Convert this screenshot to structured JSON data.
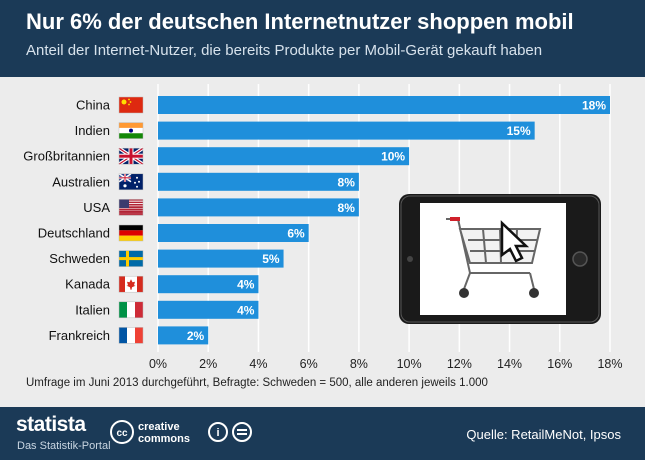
{
  "header": {
    "title": "Nur 6% der deutschen Internetnutzer shoppen mobil",
    "subtitle": "Anteil der Internet-Nutzer, die bereits Produkte per Mobil-Gerät gekauft haben"
  },
  "chart_data": {
    "type": "bar",
    "orientation": "horizontal",
    "categories": [
      "China",
      "Indien",
      "Großbritannien",
      "Australien",
      "USA",
      "Deutschland",
      "Schweden",
      "Kanada",
      "Italien",
      "Frankreich"
    ],
    "values": [
      18,
      15,
      10,
      8,
      8,
      6,
      5,
      4,
      4,
      2
    ],
    "value_labels": [
      "18%",
      "15%",
      "10%",
      "8%",
      "8%",
      "6%",
      "5%",
      "4%",
      "4%",
      "2%"
    ],
    "xlim": [
      0,
      18
    ],
    "ticks": [
      "0%",
      "2%",
      "4%",
      "6%",
      "8%",
      "10%",
      "12%",
      "14%",
      "16%",
      "18%"
    ],
    "flags": [
      "flag-china-icon",
      "flag-india-icon",
      "flag-uk-icon",
      "flag-australia-icon",
      "flag-usa-icon",
      "flag-germany-icon",
      "flag-sweden-icon",
      "flag-canada-icon",
      "flag-italy-icon",
      "flag-france-icon"
    ],
    "bar_color": "#1f8fdb",
    "grid": true
  },
  "note": "Umfrage im Juni 2013 durchgeführt, Befragte: Schweden = 500, alle anderen jeweils 1.000",
  "footer": {
    "brand": "statista",
    "brand_sub": "Das Statistik-Portal",
    "cc_label": "creative commons",
    "source": "Quelle: RetailMeNot, Ipsos"
  },
  "colors": {
    "header_bg": "#1b3a57",
    "plot_bg": "#ececec",
    "bar": "#1f8fdb"
  }
}
